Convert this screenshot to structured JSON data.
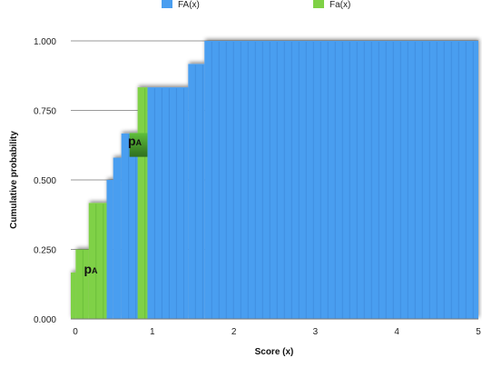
{
  "chart_data": {
    "type": "area",
    "xlabel": "Score (x)",
    "ylabel": "Cumulative probability",
    "xlim": [
      0,
      5
    ],
    "ylim": [
      0,
      1
    ],
    "x_ticks": [
      "0",
      "1",
      "2",
      "3",
      "4",
      "5"
    ],
    "y_ticks": [
      "0.000",
      "0.250",
      "0.500",
      "0.750",
      "1.000"
    ],
    "grid": "horizontal",
    "legend_position": "top",
    "series": [
      {
        "name": "FA(x)",
        "color": "#4a9ef0",
        "steps": [
          {
            "x0": 0.44,
            "x1": 0.52,
            "y": 0.5
          },
          {
            "x0": 0.52,
            "x1": 0.62,
            "y": 0.58
          },
          {
            "x0": 0.62,
            "x1": 0.94,
            "y": 0.667
          },
          {
            "x0": 0.94,
            "x1": 1.44,
            "y": 0.833
          },
          {
            "x0": 1.44,
            "x1": 1.64,
            "y": 0.917
          },
          {
            "x0": 1.64,
            "x1": 5.0,
            "y": 1.0
          }
        ]
      },
      {
        "name": "Fa(x)",
        "color": "#7fd146",
        "steps": [
          {
            "x0": 0.0,
            "x1": 0.06,
            "y": 0.167
          },
          {
            "x0": 0.06,
            "x1": 0.22,
            "y": 0.25
          },
          {
            "x0": 0.22,
            "x1": 0.44,
            "y": 0.417
          },
          {
            "x0": 0.82,
            "x1": 0.94,
            "y": 0.833
          }
        ]
      }
    ],
    "annotations": [
      {
        "text": "p",
        "subscript": "A",
        "x": 0.25,
        "y": 0.17
      },
      {
        "text": "p",
        "subscript": "A",
        "x": 0.79,
        "y": 0.63
      }
    ]
  }
}
